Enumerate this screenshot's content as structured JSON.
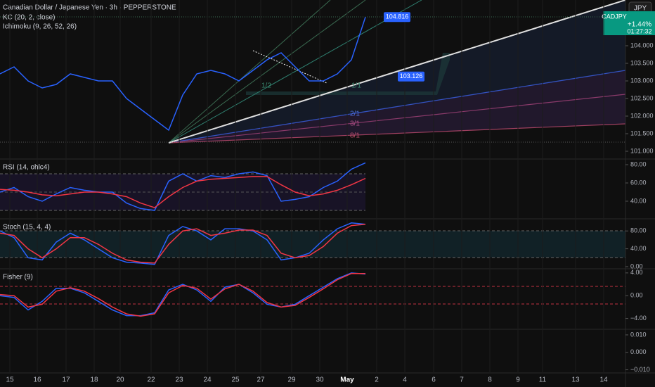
{
  "header": {
    "title": "Canadian Dollar / Japanese Yen · 3h · PEPPERSTONE",
    "indicators": [
      "KC (20, 2, close)",
      "Ichimoku (9, 26, 52, 26)"
    ],
    "currency": "JPY",
    "symbol_tag": "CADJPY",
    "change": "+1.44%",
    "countdown": "01:27:32"
  },
  "fan_labels": [
    "1/2",
    "1/1",
    "2/1",
    "3/1",
    "8/1"
  ],
  "time_axis": {
    "labels": [
      "15",
      "16",
      "17",
      "18",
      "20",
      "22",
      "23",
      "24",
      "25",
      "27",
      "29",
      "30",
      "May",
      "2",
      "4",
      "6",
      "7",
      "8",
      "9",
      "11",
      "13",
      "14"
    ]
  },
  "chart_data": [
    {
      "type": "line",
      "ylim": [
        100.78,
        105.3
      ],
      "yticks": [
        {
          "value": 104,
          "label": "104.000"
        },
        {
          "value": 103.5,
          "label": "103.500"
        },
        {
          "value": 103,
          "label": "103.000"
        },
        {
          "value": 102.5,
          "label": "102.500"
        },
        {
          "value": 102,
          "label": "102.000"
        },
        {
          "value": 101.5,
          "label": "101.500"
        },
        {
          "value": 101,
          "label": "101.000"
        }
      ],
      "price_tags": [
        {
          "value": 104.816,
          "label": "104.816"
        },
        {
          "value": 103.126,
          "label": "103.126"
        }
      ],
      "series": [
        {
          "color": "#2962ff",
          "values": [
            103.2,
            103.4,
            103.0,
            102.8,
            102.9,
            103.2,
            103.1,
            103.0,
            103.0,
            102.5,
            102.2,
            101.9,
            101.6,
            102.6,
            103.2,
            103.3,
            103.2,
            103.0,
            103.3,
            103.6,
            103.8,
            103.4,
            103.0,
            103.0,
            103.2,
            103.6,
            104.816
          ]
        }
      ]
    },
    {
      "type": "line",
      "title": "RSI (14, ohlc4)",
      "ylim": [
        21.5,
        85.4
      ],
      "yticks": [
        {
          "value": 80,
          "label": "80.00"
        },
        {
          "value": 60,
          "label": "60.00"
        },
        {
          "value": 40,
          "label": "40.00"
        }
      ],
      "series": [
        {
          "color": "#2962ff",
          "values": [
            50,
            55,
            45,
            40,
            48,
            55,
            52,
            50,
            50,
            38,
            32,
            30,
            62,
            70,
            62,
            68,
            66,
            70,
            72,
            68,
            40,
            42,
            45,
            55,
            62,
            75,
            82
          ]
        },
        {
          "color": "#f23645",
          "values": [
            53,
            52,
            50,
            47,
            46,
            48,
            50,
            50,
            48,
            45,
            38,
            33,
            45,
            55,
            62,
            64,
            65,
            66,
            67,
            67,
            58,
            50,
            46,
            48,
            52,
            58,
            65
          ]
        }
      ]
    },
    {
      "type": "line",
      "title": "Stoch (15, 4, 4)",
      "ylim": [
        -4.8,
        105.6
      ],
      "yticks": [
        {
          "value": 80,
          "label": "80.00"
        },
        {
          "value": 40,
          "label": "40.00"
        },
        {
          "value": 0,
          "label": "0.00"
        }
      ],
      "series": [
        {
          "color": "#2962ff",
          "values": [
            80,
            65,
            20,
            15,
            55,
            75,
            60,
            40,
            20,
            10,
            8,
            5,
            70,
            90,
            80,
            60,
            85,
            85,
            80,
            60,
            15,
            20,
            30,
            60,
            85,
            98,
            95
          ]
        },
        {
          "color": "#f23645",
          "values": [
            75,
            70,
            40,
            20,
            40,
            65,
            65,
            50,
            30,
            15,
            10,
            8,
            50,
            80,
            85,
            70,
            75,
            82,
            82,
            70,
            30,
            20,
            25,
            45,
            75,
            92,
            95
          ]
        }
      ]
    },
    {
      "type": "line",
      "title": "Fisher (9)",
      "ylim": [
        -5.9,
        4.6
      ],
      "yticks": [
        {
          "value": 4,
          "label": "4.00"
        },
        {
          "value": 0,
          "label": "0.00"
        },
        {
          "value": -4,
          "label": "−4.00"
        }
      ],
      "series": [
        {
          "color": "#2962ff",
          "values": [
            0,
            -0.3,
            -2.5,
            -1,
            1.3,
            1.3,
            0.5,
            -1,
            -2.5,
            -3.5,
            -3.5,
            -3,
            1,
            2,
            1,
            -1,
            1.5,
            2,
            0.5,
            -1.5,
            -2,
            -1.5,
            0,
            1.5,
            3,
            4,
            3.8
          ]
        },
        {
          "color": "#f23645",
          "values": [
            0.2,
            0,
            -2,
            -1.5,
            0.8,
            1.4,
            0.8,
            -0.5,
            -2,
            -3.2,
            -3.6,
            -3.2,
            0.5,
            1.8,
            1.3,
            -0.6,
            1.2,
            2,
            0.8,
            -1.2,
            -2,
            -1.7,
            -0.3,
            1.2,
            2.8,
            3.9,
            3.9
          ]
        }
      ]
    },
    {
      "type": "line",
      "ylim": [
        -0.0118,
        0.0128
      ],
      "yticks": [
        {
          "value": 0.01,
          "label": "0.010"
        },
        {
          "value": 0,
          "label": "0.000"
        },
        {
          "value": -0.01,
          "label": "−0.010"
        }
      ]
    }
  ]
}
